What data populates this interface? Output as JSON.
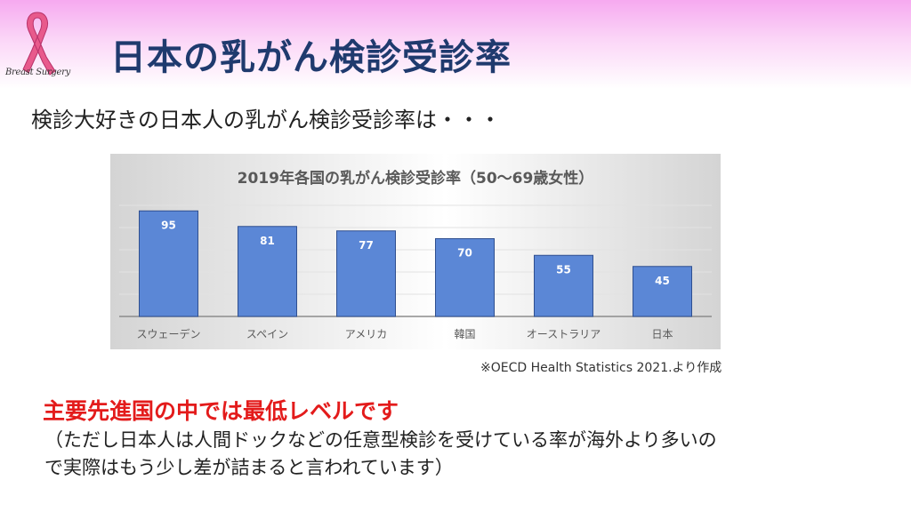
{
  "slide": {
    "title": "日本の乳がん検診受診率",
    "logo_text": "Breast Surgery",
    "lead": "検診大好きの日本人の乳がん検診受診率は・・・",
    "source": "※OECD Health Statistics 2021.より作成",
    "highlight": "主要先進国の中では最低レベルです",
    "note_lines": [
      "（ただし日本人は人間ドックなどの任意型検診を受けている率が海外より多いの",
      "で実際はもう少し差が詰まると言われています）"
    ],
    "colors": {
      "title": "#1f3a6e",
      "highlight": "#e31b1b",
      "ribbon": "#e85a8c",
      "bar_fill": "#5b87d6",
      "bar_stroke": "#2f4f8f"
    }
  },
  "chart_data": {
    "type": "bar",
    "title": "2019年各国の乳がん検診受診率（50〜69歳女性）",
    "categories": [
      "スウェーデン",
      "スペイン",
      "アメリカ",
      "韓国",
      "オーストラリア",
      "日本"
    ],
    "values": [
      95,
      81,
      77,
      70,
      55,
      45
    ],
    "data_labels": [
      "95",
      "81",
      "77",
      "70",
      "55",
      "45"
    ],
    "ylim": [
      0,
      100
    ],
    "grid": true,
    "legend": "none",
    "xlabel": "",
    "ylabel": ""
  }
}
